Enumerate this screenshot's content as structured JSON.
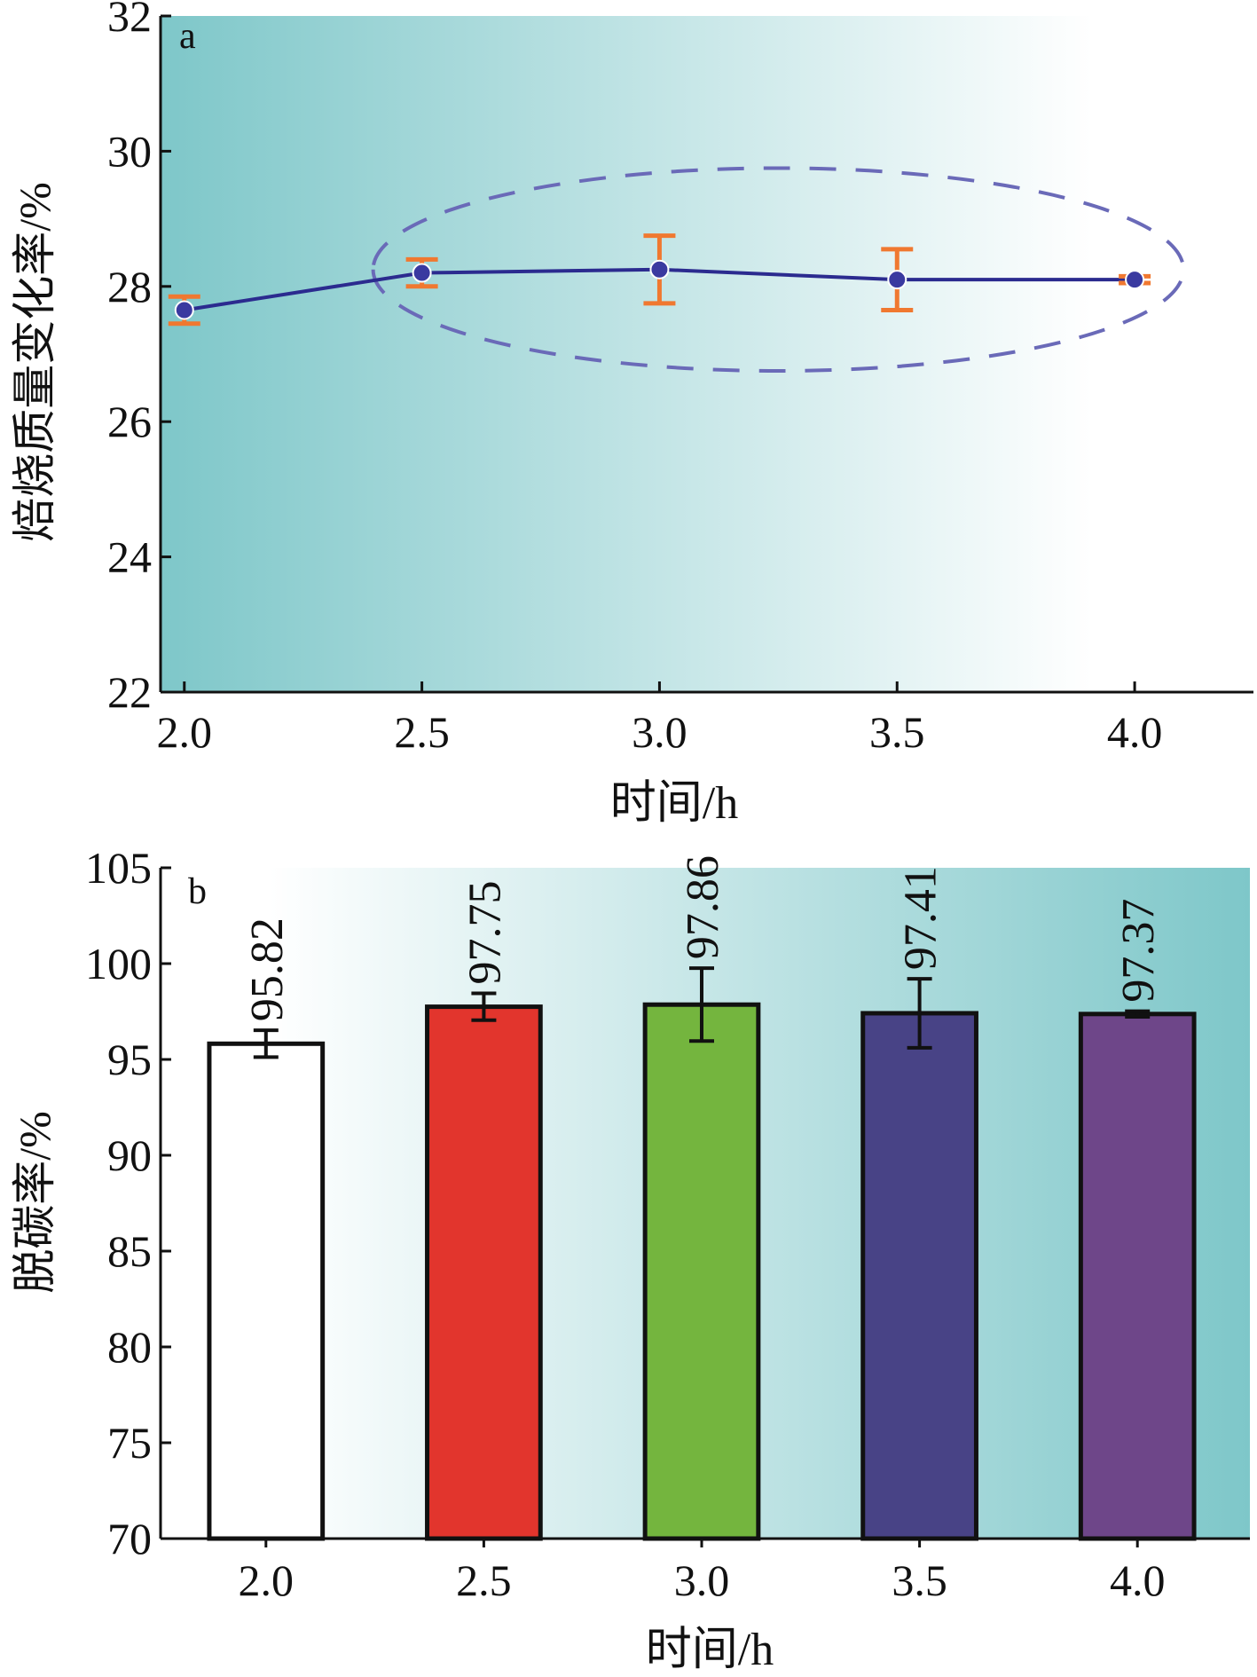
{
  "chart_data": [
    {
      "panel": "a",
      "type": "line",
      "x": [
        2.0,
        2.5,
        3.0,
        3.5,
        4.0
      ],
      "y": [
        27.65,
        28.2,
        28.25,
        28.1,
        28.1
      ],
      "error": [
        0.2,
        0.2,
        0.5,
        0.45,
        0.05
      ],
      "xlabel": "时间/h",
      "ylabel": "焙烧质量变化率/%",
      "xlim": [
        1.95,
        4.25
      ],
      "ylim": [
        22,
        32
      ],
      "xticks": [
        "2.0",
        "2.5",
        "3.0",
        "3.5",
        "4.0"
      ],
      "yticks": [
        "22",
        "24",
        "26",
        "28",
        "30",
        "32"
      ],
      "highlight_ellipse_x_range": [
        2.5,
        4.0
      ],
      "colors": {
        "line": "#2b2b8f",
        "marker": "#3a3aa0",
        "errorbar": "#f07830",
        "ellipse": "#6a6ab8",
        "gradient_left": "#7ec7c9",
        "gradient_right": "#ffffff"
      }
    },
    {
      "panel": "b",
      "type": "bar",
      "categories": [
        "2.0",
        "2.5",
        "3.0",
        "3.5",
        "4.0"
      ],
      "values": [
        95.82,
        97.75,
        97.86,
        97.41,
        97.37
      ],
      "value_labels": [
        "95.82",
        "97.75",
        "97.86",
        "97.41",
        "97.37"
      ],
      "error": [
        0.7,
        0.7,
        1.9,
        1.8,
        0.15
      ],
      "xlabel": "时间/h",
      "ylabel": "脱碳率/%",
      "ylim": [
        70,
        105
      ],
      "yticks": [
        "70",
        "75",
        "80",
        "85",
        "90",
        "95",
        "100",
        "105"
      ],
      "colors": {
        "bars": [
          "#ffffff",
          "#e2352d",
          "#74b53e",
          "#484386",
          "#6e4689"
        ],
        "gradient_left": "#ffffff",
        "gradient_right": "#7ec7c9"
      }
    }
  ]
}
